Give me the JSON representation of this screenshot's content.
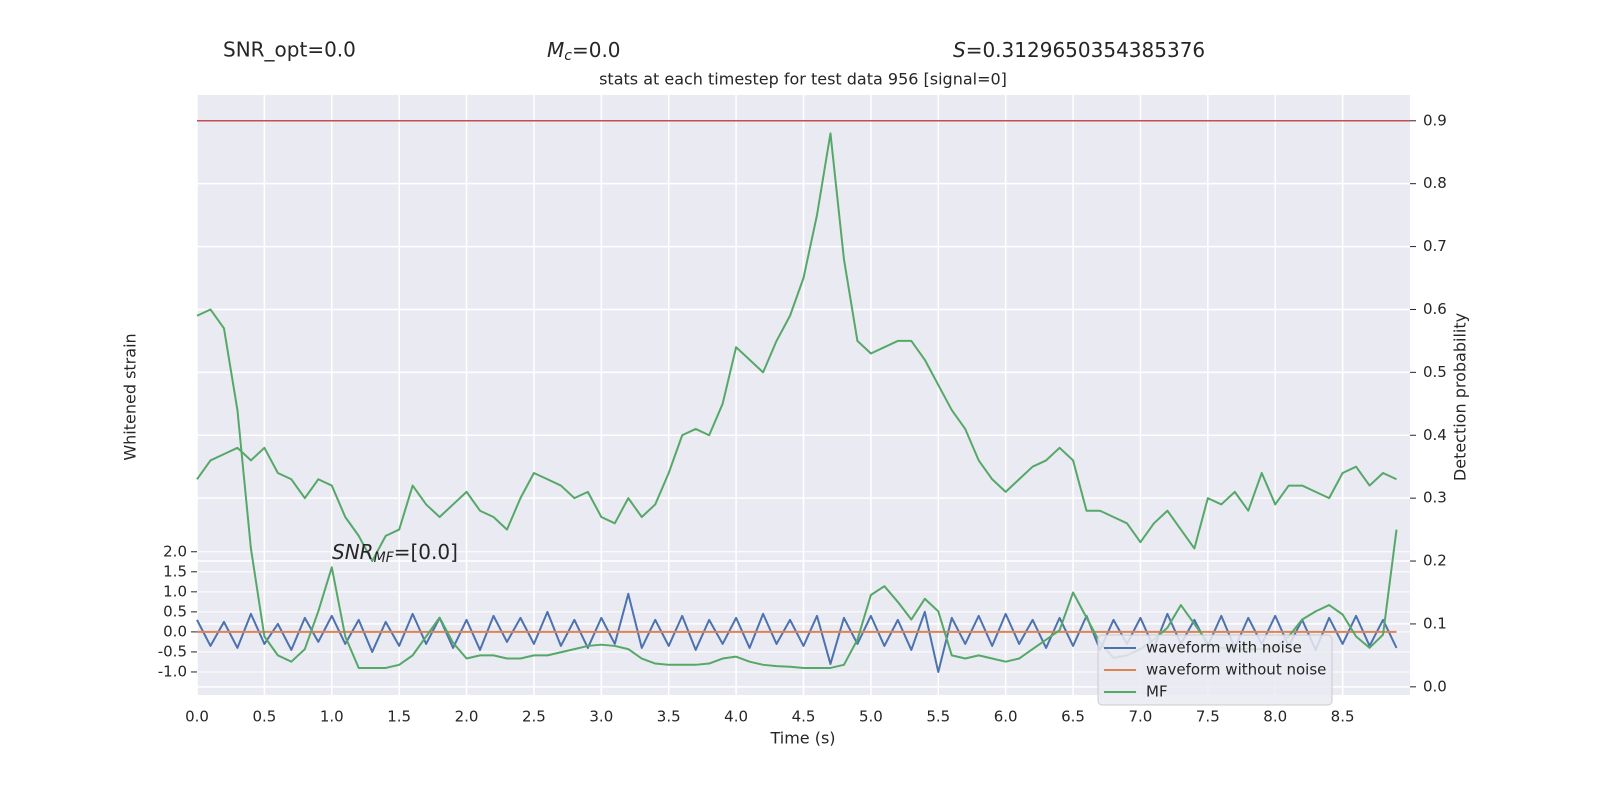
{
  "chart_data": {
    "type": "line",
    "title": "stats at each timestep for test data 956 [signal=0]",
    "x_label": "Time (s)",
    "y_label": "Whitened strain",
    "y2_label": "Detection probability",
    "annotations": [
      {
        "text": "SNR_opt=0.0"
      },
      {
        "symbol": "M",
        "subscript": "c",
        "text": "=0.0"
      },
      {
        "symbol": "S",
        "text": "=0.3129650354385376"
      },
      {
        "symbol": "SNR",
        "subscript": "MF",
        "text": "=[0.0]"
      }
    ],
    "x": [
      0.0,
      0.1,
      0.2,
      0.3,
      0.4,
      0.5,
      0.6,
      0.7,
      0.8,
      0.9,
      1.0,
      1.1,
      1.2,
      1.3,
      1.4,
      1.5,
      1.6,
      1.7,
      1.8,
      1.9,
      2.0,
      2.1,
      2.2,
      2.3,
      2.4,
      2.5,
      2.6,
      2.7,
      2.8,
      2.9,
      3.0,
      3.1,
      3.2,
      3.3,
      3.4,
      3.5,
      3.6,
      3.7,
      3.8,
      3.9,
      4.0,
      4.1,
      4.2,
      4.3,
      4.4,
      4.5,
      4.6,
      4.7,
      4.8,
      4.9,
      5.0,
      5.1,
      5.2,
      5.3,
      5.4,
      5.5,
      5.6,
      5.7,
      5.8,
      5.9,
      6.0,
      6.1,
      6.2,
      6.3,
      6.4,
      6.5,
      6.6,
      6.7,
      6.8,
      6.9,
      7.0,
      7.1,
      7.2,
      7.3,
      7.4,
      7.5,
      7.6,
      7.7,
      7.8,
      7.9,
      8.0,
      8.1,
      8.2,
      8.3,
      8.4,
      8.5,
      8.6,
      8.7,
      8.8,
      8.9
    ],
    "series": [
      {
        "name": "waveform with noise",
        "color": "#4c72b0",
        "axis": "y",
        "values": [
          0.3,
          -0.35,
          0.25,
          -0.4,
          0.45,
          -0.3,
          0.2,
          -0.45,
          0.35,
          -0.25,
          0.4,
          -0.3,
          0.3,
          -0.5,
          0.25,
          -0.35,
          0.45,
          -0.3,
          0.35,
          -0.4,
          0.3,
          -0.45,
          0.4,
          -0.25,
          0.35,
          -0.3,
          0.5,
          -0.35,
          0.3,
          -0.4,
          0.35,
          -0.3,
          0.95,
          -0.4,
          0.3,
          -0.35,
          0.4,
          -0.45,
          0.3,
          -0.3,
          0.35,
          -0.4,
          0.45,
          -0.3,
          0.3,
          -0.35,
          0.4,
          -0.8,
          0.35,
          -0.3,
          0.4,
          -0.35,
          0.3,
          -0.45,
          0.5,
          -1.0,
          0.35,
          -0.3,
          0.4,
          -0.35,
          0.45,
          -0.3,
          0.3,
          -0.4,
          0.35,
          -0.35,
          0.4,
          -0.45,
          0.3,
          -0.3,
          0.35,
          -0.4,
          0.45,
          -0.3,
          0.3,
          -0.35,
          0.4,
          -0.4,
          0.35,
          -0.3,
          0.4,
          -0.35,
          0.3,
          -0.45,
          0.35,
          -0.3,
          0.4,
          -0.35,
          0.3,
          -0.4
        ]
      },
      {
        "name": "waveform without noise",
        "color": "#dd8452",
        "axis": "y",
        "values": [
          0,
          0,
          0,
          0,
          0,
          0,
          0,
          0,
          0,
          0,
          0,
          0,
          0,
          0,
          0,
          0,
          0,
          0,
          0,
          0,
          0,
          0,
          0,
          0,
          0,
          0,
          0,
          0,
          0,
          0,
          0,
          0,
          0,
          0,
          0,
          0,
          0,
          0,
          0,
          0,
          0,
          0,
          0,
          0,
          0,
          0,
          0,
          0,
          0,
          0,
          0,
          0,
          0,
          0,
          0,
          0,
          0,
          0,
          0,
          0,
          0,
          0,
          0,
          0,
          0,
          0,
          0,
          0,
          0,
          0,
          0,
          0,
          0,
          0,
          0,
          0,
          0,
          0,
          0,
          0,
          0,
          0,
          0,
          0,
          0,
          0,
          0,
          0,
          0,
          0
        ]
      },
      {
        "name": "MF",
        "color": "#55a868",
        "axis": "y2",
        "values": [
          0.59,
          0.6,
          0.57,
          0.44,
          0.22,
          0.08,
          0.05,
          0.04,
          0.06,
          0.12,
          0.19,
          0.08,
          0.03,
          0.03,
          0.03,
          0.035,
          0.05,
          0.08,
          0.11,
          0.07,
          0.045,
          0.05,
          0.05,
          0.045,
          0.045,
          0.05,
          0.05,
          0.055,
          0.06,
          0.065,
          0.067,
          0.065,
          0.06,
          0.045,
          0.037,
          0.035,
          0.035,
          0.035,
          0.037,
          0.045,
          0.048,
          0.04,
          0.035,
          0.033,
          0.032,
          0.03,
          0.03,
          0.03,
          0.035,
          0.075,
          0.146,
          0.16,
          0.135,
          0.107,
          0.14,
          0.12,
          0.05,
          0.045,
          0.05,
          0.045,
          0.04,
          0.045,
          0.06,
          0.075,
          0.09,
          0.15,
          0.11,
          0.07,
          0.046,
          0.05,
          0.06,
          0.075,
          0.094,
          0.13,
          0.1,
          0.07,
          0.062,
          0.06,
          0.06,
          0.06,
          0.062,
          0.08,
          0.107,
          0.12,
          0.13,
          0.115,
          0.08,
          0.062,
          0.083,
          0.25
        ]
      },
      {
        "color": "#55a868",
        "axis": "y2",
        "values": [
          0.33,
          0.36,
          0.37,
          0.38,
          0.36,
          0.38,
          0.34,
          0.33,
          0.3,
          0.33,
          0.32,
          0.27,
          0.24,
          0.2,
          0.24,
          0.25,
          0.32,
          0.29,
          0.27,
          0.29,
          0.31,
          0.28,
          0.27,
          0.25,
          0.3,
          0.34,
          0.33,
          0.32,
          0.3,
          0.31,
          0.27,
          0.26,
          0.3,
          0.27,
          0.29,
          0.34,
          0.4,
          0.41,
          0.4,
          0.45,
          0.54,
          0.52,
          0.5,
          0.55,
          0.59,
          0.65,
          0.75,
          0.88,
          0.68,
          0.55,
          0.53,
          0.54,
          0.55,
          0.55,
          0.52,
          0.48,
          0.44,
          0.41,
          0.36,
          0.33,
          0.31,
          0.33,
          0.35,
          0.36,
          0.38,
          0.36,
          0.28,
          0.28,
          0.27,
          0.26,
          0.23,
          0.26,
          0.28,
          0.25,
          0.22,
          0.3,
          0.29,
          0.31,
          0.28,
          0.34,
          0.29,
          0.32,
          0.32,
          0.31,
          0.3,
          0.34,
          0.35,
          0.32,
          0.34,
          0.33
        ]
      }
    ],
    "hlines": [
      {
        "value": 0.9,
        "color": "#c44e52",
        "axis": "y2"
      }
    ],
    "xlim": [
      0,
      9
    ],
    "xticks": [
      {
        "value": 0,
        "label": "0.0"
      },
      {
        "value": 0.5,
        "label": "0.5"
      },
      {
        "value": 1,
        "label": "1.0"
      },
      {
        "value": 1.5,
        "label": "1.5"
      },
      {
        "value": 2,
        "label": "2.0"
      },
      {
        "value": 2.5,
        "label": "2.5"
      },
      {
        "value": 3,
        "label": "3.0"
      },
      {
        "value": 3.5,
        "label": "3.5"
      },
      {
        "value": 4,
        "label": "4.0"
      },
      {
        "value": 4.5,
        "label": "4.5"
      },
      {
        "value": 5,
        "label": "5.0"
      },
      {
        "value": 5.5,
        "label": "5.5"
      },
      {
        "value": 6,
        "label": "6.0"
      },
      {
        "value": 6.5,
        "label": "6.5"
      },
      {
        "value": 7,
        "label": "7.0"
      },
      {
        "value": 7.5,
        "label": "7.5"
      },
      {
        "value": 8,
        "label": "8.0"
      },
      {
        "value": 8.5,
        "label": "8.5"
      }
    ],
    "ylim": [
      -1.575,
      13.4
    ],
    "yticks": [
      {
        "value": 2,
        "label": "2.0"
      },
      {
        "value": 1.5,
        "label": "1.5"
      },
      {
        "value": 1,
        "label": "1.0"
      },
      {
        "value": 0.5,
        "label": "0.5"
      },
      {
        "value": 0,
        "label": "0.0"
      },
      {
        "value": -0.5,
        "label": "-0.5"
      },
      {
        "value": -1,
        "label": "-1.0"
      }
    ],
    "y2lim": [
      -0.013,
      0.941
    ],
    "y2ticks": [
      {
        "value": 0,
        "label": "0.0"
      },
      {
        "value": 0.1,
        "label": "0.1"
      },
      {
        "value": 0.2,
        "label": "0.2"
      },
      {
        "value": 0.3,
        "label": "0.3"
      },
      {
        "value": 0.4,
        "label": "0.4"
      },
      {
        "value": 0.5,
        "label": "0.5"
      },
      {
        "value": 0.6,
        "label": "0.6"
      },
      {
        "value": 0.7,
        "label": "0.7"
      },
      {
        "value": 0.8,
        "label": "0.8"
      },
      {
        "value": 0.9,
        "label": "0.9"
      }
    ],
    "grid": true,
    "legend": "lower right",
    "background": "#eaeaf2"
  }
}
